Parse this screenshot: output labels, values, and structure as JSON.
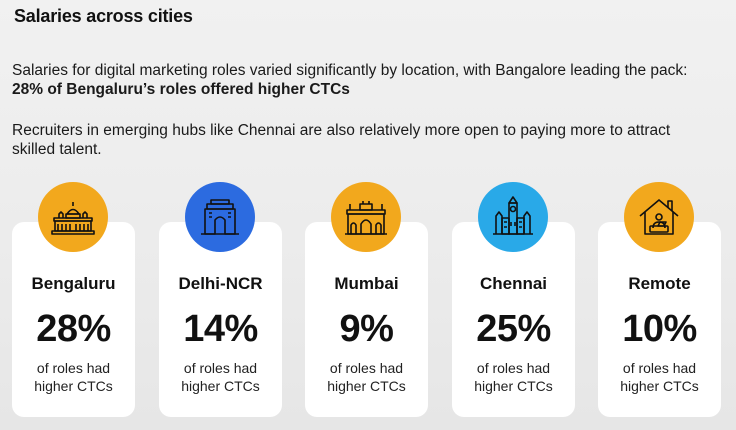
{
  "title": "Salaries across cities",
  "intro": {
    "line1_regular": "Salaries for digital marketing roles varied significantly by location, with Bangalore leading the pack: ",
    "line1_bold": "28% of Bengaluru’s roles offered higher CTCs",
    "line2": "Recruiters in emerging hubs like Chennai are also relatively more open to paying more to attract skilled talent."
  },
  "cards": [
    {
      "city": "Bengaluru",
      "percent": "28%",
      "desc": "of roles had higher CTCs",
      "icon": "palace-icon",
      "color": "#F2A81D"
    },
    {
      "city": "Delhi-NCR",
      "percent": "14%",
      "desc": "of roles had higher CTCs",
      "icon": "india-gate-icon",
      "color": "#2C6BE0"
    },
    {
      "city": "Mumbai",
      "percent": "9%",
      "desc": "of roles had higher CTCs",
      "icon": "gateway-of-india-icon",
      "color": "#F2A81D"
    },
    {
      "city": "Chennai",
      "percent": "25%",
      "desc": "of roles had higher CTCs",
      "icon": "central-station-icon",
      "color": "#29A9E8"
    },
    {
      "city": "Remote",
      "percent": "10%",
      "desc": "of roles had higher CTCs",
      "icon": "home-office-icon",
      "color": "#F2A81D"
    }
  ]
}
